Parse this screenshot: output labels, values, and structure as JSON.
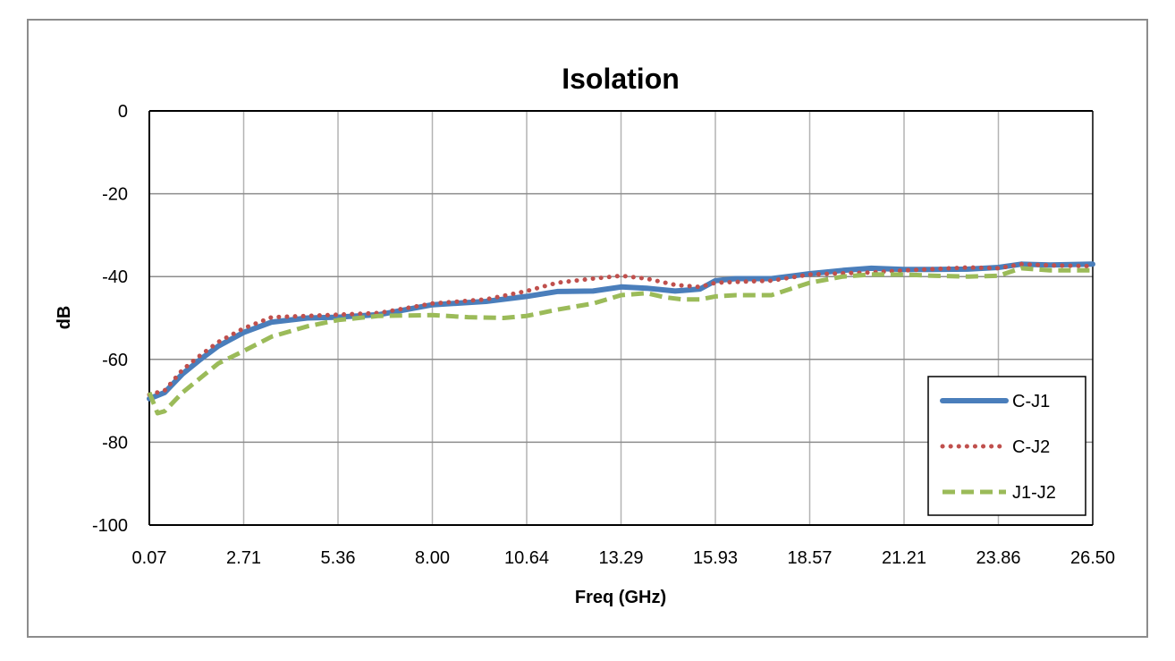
{
  "chart_data": {
    "type": "line",
    "title": "Isolation",
    "xlabel": "Freq (GHz)",
    "ylabel": "dB",
    "xlim": [
      0.07,
      26.5
    ],
    "ylim": [
      -100,
      0
    ],
    "x_ticks": [
      "0.07",
      "2.71",
      "5.36",
      "8.00",
      "10.64",
      "13.29",
      "15.93",
      "18.57",
      "21.21",
      "23.86",
      "26.50"
    ],
    "y_ticks": [
      "0",
      "-20",
      "-40",
      "-60",
      "-80",
      "-100"
    ],
    "grid": true,
    "legend_position": "bottom-right",
    "series": [
      {
        "name": "C-J1",
        "color": "#4a7ebb",
        "style": "solid",
        "x": [
          0.07,
          0.5,
          1.0,
          1.5,
          2.0,
          2.71,
          3.5,
          4.5,
          5.36,
          6.5,
          8.0,
          9.5,
          10.64,
          11.5,
          12.5,
          13.29,
          14.0,
          14.8,
          15.5,
          15.93,
          16.5,
          17.5,
          18.57,
          19.5,
          20.3,
          21.21,
          22.0,
          23.0,
          23.86,
          24.5,
          25.3,
          26.5
        ],
        "y": [
          -69.5,
          -68,
          -63.5,
          -60,
          -56.8,
          -53.5,
          -51,
          -50,
          -49.8,
          -49.2,
          -46.8,
          -46,
          -44.8,
          -43.6,
          -43.5,
          -42.5,
          -42.8,
          -43.5,
          -43,
          -41,
          -40.5,
          -40.5,
          -39.3,
          -38.5,
          -38,
          -38.3,
          -38.3,
          -38.2,
          -37.8,
          -37,
          -37.2,
          -37
        ]
      },
      {
        "name": "C-J2",
        "color": "#c0504d",
        "style": "dotted",
        "x": [
          0.07,
          0.5,
          1.0,
          1.5,
          2.0,
          2.71,
          3.5,
          4.5,
          5.36,
          6.5,
          8.0,
          9.5,
          10.64,
          11.5,
          12.5,
          13.29,
          14.0,
          14.8,
          15.5,
          15.93,
          16.5,
          17.5,
          18.57,
          19.5,
          20.3,
          21.21,
          22.0,
          23.0,
          23.86,
          24.5,
          25.3,
          26.5
        ],
        "y": [
          -68.5,
          -67.5,
          -62.5,
          -59,
          -55.8,
          -52.5,
          -49.8,
          -49.5,
          -49.2,
          -48.8,
          -46.5,
          -45.5,
          -43.5,
          -41.5,
          -40.5,
          -39.8,
          -40.5,
          -42,
          -42.5,
          -41.5,
          -41.3,
          -41,
          -39.5,
          -39.2,
          -39,
          -38.5,
          -38.2,
          -37.8,
          -38,
          -37,
          -37.3,
          -37.5
        ]
      },
      {
        "name": "J1-J2",
        "color": "#9bbb59",
        "style": "dashed",
        "x": [
          0.07,
          0.3,
          0.5,
          1.0,
          1.5,
          2.0,
          2.71,
          3.5,
          4.5,
          5.36,
          6.5,
          8.0,
          9.0,
          10.0,
          10.64,
          11.5,
          12.5,
          13.29,
          14.0,
          14.5,
          15.0,
          15.5,
          15.93,
          16.5,
          17.5,
          18.57,
          19.5,
          20.3,
          21.21,
          22.0,
          23.0,
          23.86,
          24.5,
          25.3,
          26.5
        ],
        "y": [
          -68,
          -73,
          -72.5,
          -68,
          -64.5,
          -61,
          -58,
          -54.5,
          -52,
          -50.5,
          -49.5,
          -49.3,
          -49.8,
          -50,
          -49.5,
          -48,
          -46.5,
          -44.5,
          -44,
          -45,
          -45.5,
          -45.5,
          -44.8,
          -44.5,
          -44.5,
          -41.5,
          -40,
          -39.5,
          -39.5,
          -39.8,
          -40,
          -39.8,
          -38,
          -38.5,
          -38.5
        ]
      }
    ]
  }
}
